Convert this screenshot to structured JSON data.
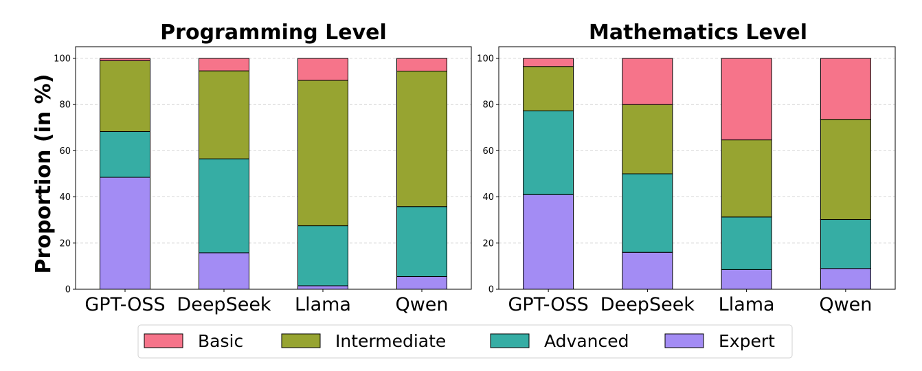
{
  "chart_data": {
    "type": "bar",
    "stacked": true,
    "ylabel": "Proportion (in %)",
    "ylim": [
      0,
      100
    ],
    "yticks": [
      0,
      20,
      40,
      60,
      80,
      100
    ],
    "legend": {
      "placement": "bottom-center",
      "entries": [
        {
          "name": "Basic",
          "color": "#f6748a"
        },
        {
          "name": "Intermediate",
          "color": "#97a431"
        },
        {
          "name": "Advanced",
          "color": "#36ada4"
        },
        {
          "name": "Expert",
          "color": "#a38cf4"
        }
      ]
    },
    "panels": [
      {
        "title": "Programming Level",
        "categories": [
          "GPT-OSS",
          "DeepSeek",
          "Llama",
          "Qwen"
        ],
        "series": [
          {
            "name": "Expert",
            "values": [
              48.5,
              15.8,
              1.5,
              5.5
            ]
          },
          {
            "name": "Advanced",
            "values": [
              19.8,
              40.7,
              26.0,
              30.3
            ]
          },
          {
            "name": "Intermediate",
            "values": [
              30.7,
              38.1,
              63.0,
              58.7
            ]
          },
          {
            "name": "Basic",
            "values": [
              1.0,
              5.4,
              9.5,
              5.5
            ]
          }
        ]
      },
      {
        "title": "Mathematics Level",
        "categories": [
          "GPT-OSS",
          "DeepSeek",
          "Llama",
          "Qwen"
        ],
        "series": [
          {
            "name": "Expert",
            "values": [
              41.0,
              16.0,
              8.5,
              9.0
            ]
          },
          {
            "name": "Advanced",
            "values": [
              36.3,
              34.0,
              22.8,
              21.2
            ]
          },
          {
            "name": "Intermediate",
            "values": [
              19.2,
              30.0,
              33.4,
              43.4
            ]
          },
          {
            "name": "Basic",
            "values": [
              3.5,
              20.0,
              35.3,
              26.4
            ]
          }
        ]
      }
    ]
  }
}
